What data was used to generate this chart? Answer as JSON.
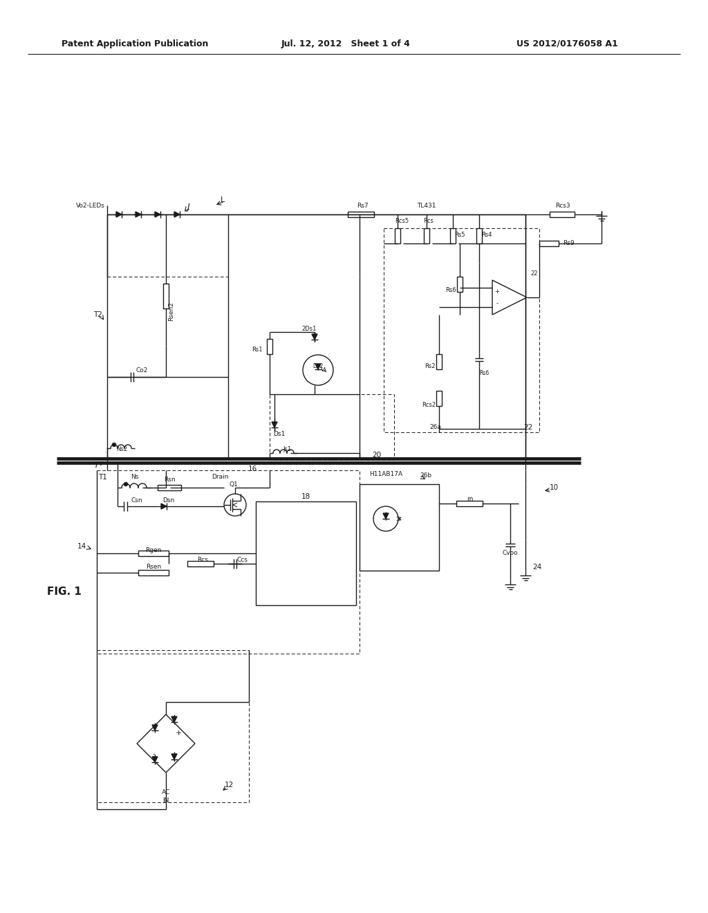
{
  "background_color": "#ffffff",
  "header_left": "Patent Application Publication",
  "header_center": "Jul. 12, 2012   Sheet 1 of 4",
  "header_right": "US 2012/0176058 A1",
  "fig_label": "FIG. 1",
  "lc": "#1a1a1a"
}
